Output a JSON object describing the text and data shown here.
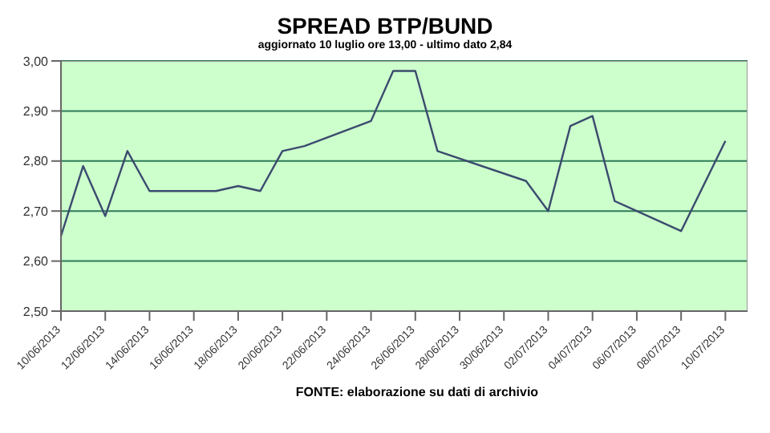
{
  "chart_data": {
    "type": "line",
    "title": "SPREAD BTP/BUND",
    "subtitle": "aggiornato 10 luglio ore 13,00 - ultimo dato 2,84",
    "annotations": [
      "FONTE: elaborazione su dati di archivio"
    ],
    "x": [
      "2013-06-10",
      "2013-06-11",
      "2013-06-12",
      "2013-06-13",
      "2013-06-14",
      "2013-06-17",
      "2013-06-18",
      "2013-06-19",
      "2013-06-20",
      "2013-06-21",
      "2013-06-24",
      "2013-06-25",
      "2013-06-26",
      "2013-06-27",
      "2013-07-01",
      "2013-07-02",
      "2013-07-03",
      "2013-07-04",
      "2013-07-05",
      "2013-07-08",
      "2013-07-10"
    ],
    "series": [
      {
        "color": "#3b4a6e",
        "values": [
          2.65,
          2.79,
          2.69,
          2.82,
          2.74,
          2.74,
          2.75,
          2.74,
          2.82,
          2.83,
          2.88,
          2.98,
          2.98,
          2.82,
          2.76,
          2.7,
          2.87,
          2.89,
          2.72,
          2.66,
          2.84
        ]
      }
    ],
    "xlim": [
      "2013-06-10",
      "2013-07-11"
    ],
    "xticks": [
      {
        "value": "2013-06-10",
        "label": "10/06/2013"
      },
      {
        "value": "2013-06-12",
        "label": "12/06/2013"
      },
      {
        "value": "2013-06-14",
        "label": "14/06/2013"
      },
      {
        "value": "2013-06-16",
        "label": "16/06/2013"
      },
      {
        "value": "2013-06-18",
        "label": "18/06/2013"
      },
      {
        "value": "2013-06-20",
        "label": "20/06/2013"
      },
      {
        "value": "2013-06-22",
        "label": "22/06/2013"
      },
      {
        "value": "2013-06-24",
        "label": "24/06/2013"
      },
      {
        "value": "2013-06-26",
        "label": "26/06/2013"
      },
      {
        "value": "2013-06-28",
        "label": "28/06/2013"
      },
      {
        "value": "2013-06-30",
        "label": "30/06/2013"
      },
      {
        "value": "2013-07-02",
        "label": "02/07/2013"
      },
      {
        "value": "2013-07-04",
        "label": "04/07/2013"
      },
      {
        "value": "2013-07-06",
        "label": "06/07/2013"
      },
      {
        "value": "2013-07-08",
        "label": "08/07/2013"
      },
      {
        "value": "2013-07-10",
        "label": "10/07/2013"
      }
    ],
    "ylim": [
      2.5,
      3.0
    ],
    "yticks": [
      {
        "value": 2.5,
        "label": "2,50"
      },
      {
        "value": 2.6,
        "label": "2,60"
      },
      {
        "value": 2.7,
        "label": "2,70"
      },
      {
        "value": 2.8,
        "label": "2,80"
      },
      {
        "value": 2.9,
        "label": "2,90"
      },
      {
        "value": 3.0,
        "label": "3,00"
      }
    ],
    "grid": "y",
    "marker": "none",
    "line_style": "solid"
  }
}
